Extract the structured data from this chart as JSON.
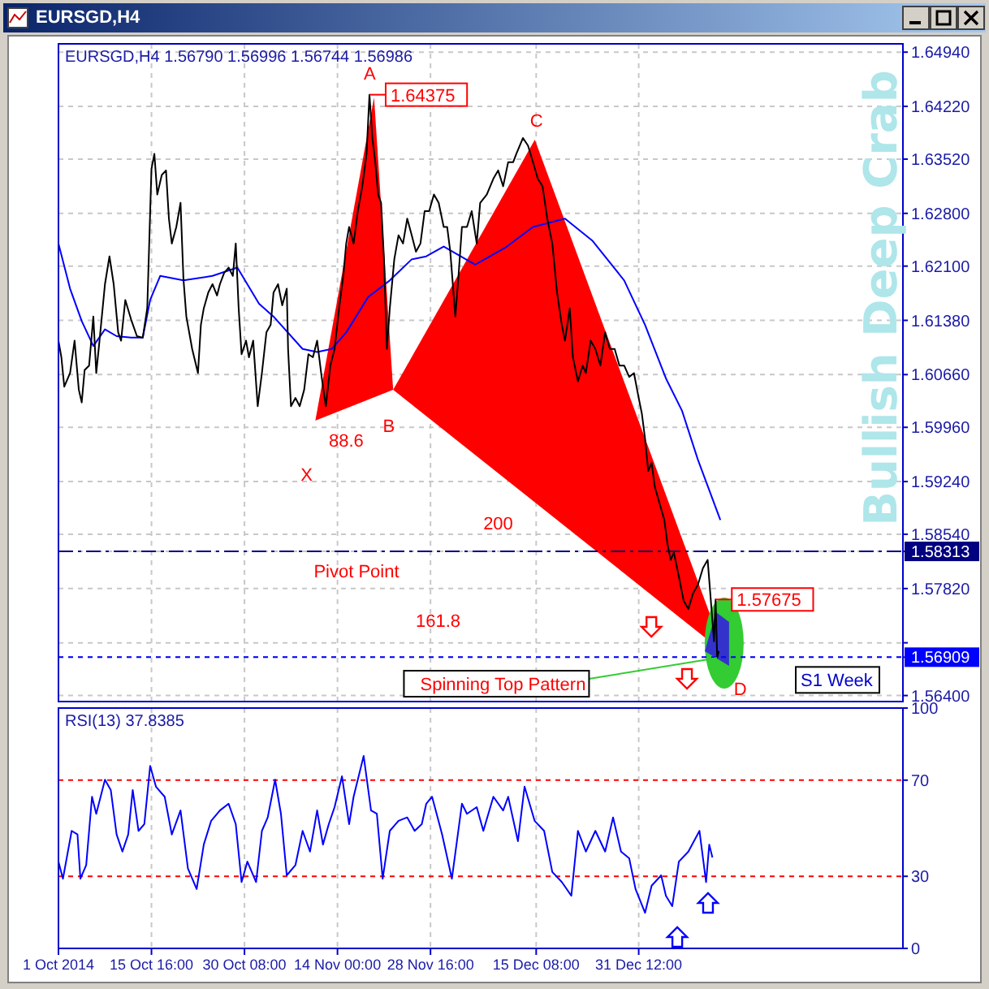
{
  "chart_data": [
    {
      "type": "line",
      "subtitle": "EURSGD,H4",
      "title": "EURSGD,H4  1.56790 1.56996 1.56744 1.56986",
      "xlim": [
        "2014-10-01T00:00",
        "2015-02-11T04:00"
      ],
      "ylim": [
        1.5632,
        1.6505
      ],
      "xticks": [
        {
          "value": "2014-10-01T00:00",
          "label": null
        },
        {
          "value": "2014-10-15T16:00",
          "label": null
        },
        {
          "value": "2014-10-30T08:00",
          "label": null
        },
        {
          "value": "2014-11-14T00:00",
          "label": null
        },
        {
          "value": "2014-11-28T16:00",
          "label": null
        },
        {
          "value": "2014-12-15T08:00",
          "label": null
        },
        {
          "value": "2014-12-31T12:00",
          "label": null
        }
      ],
      "yticks": [
        {
          "value": 1.6494,
          "label": "1.64940"
        },
        {
          "value": 1.6422,
          "label": "1.64220"
        },
        {
          "value": 1.6352,
          "label": "1.63520"
        },
        {
          "value": 1.628,
          "label": "1.62800"
        },
        {
          "value": 1.621,
          "label": "1.62100"
        },
        {
          "value": 1.6138,
          "label": "1.61380"
        },
        {
          "value": 1.6066,
          "label": "1.60660"
        },
        {
          "value": 1.5996,
          "label": "1.59960"
        },
        {
          "value": 1.5924,
          "label": "1.59240"
        },
        {
          "value": 1.5854,
          "label": "1.58540"
        },
        {
          "value": 1.58313,
          "label": "1.58313"
        },
        {
          "value": 1.5782,
          "label": "1.57820"
        },
        {
          "value": 1.571,
          "label": null
        },
        {
          "value": 1.56909,
          "label": "1.56909"
        },
        {
          "value": 1.564,
          "label": "1.56400"
        }
      ],
      "tick_labels": "y",
      "grid": true,
      "marker": "none",
      "series": [
        {
          "color": "#0000ff",
          "x": [
            "2014-10-01T00:00",
            "2014-10-02T20:00",
            "2014-10-04T16:00",
            "2014-10-06T12:00",
            "2014-10-08T08:00",
            "2014-10-10T04:00",
            "2014-10-12T11:00",
            "2014-10-14T07:00",
            "2014-10-15T11:00",
            "2014-10-17T01:00",
            "2014-10-20T17:00",
            "2014-10-25T07:00",
            "2014-10-29T05:00",
            "2014-11-01T15:00",
            "2014-11-03T22:00",
            "2014-11-08T12:00",
            "2014-11-10T19:00",
            "2014-11-13T02:00",
            "2014-11-15T09:00",
            "2014-11-18T20:00",
            "2014-11-22T06:00",
            "2014-11-25T17:00",
            "2014-11-28T00:00",
            "2014-11-30T18:00",
            "2014-12-05T17:00",
            "2014-12-10T09:00",
            "2014-12-14T20:00",
            "2014-12-19T21:00",
            "2014-12-24T04:00",
            "2014-12-29T05:00",
            "2015-01-01T12:00",
            "2015-01-04T19:00",
            "2015-01-07T08:00",
            "2015-01-09T20:00",
            "2015-01-13T09:00"
          ],
          "values": [
            1.624,
            1.618,
            1.6137,
            1.6104,
            1.6126,
            1.6117,
            1.6115,
            1.6115,
            1.6165,
            1.6197,
            1.6191,
            1.6197,
            1.6208,
            1.616,
            1.6143,
            1.61,
            1.6096,
            1.61,
            1.6122,
            1.6169,
            1.6191,
            1.6219,
            1.6223,
            1.6236,
            1.6212,
            1.6234,
            1.6262,
            1.6273,
            1.6244,
            1.6191,
            1.6132,
            1.6061,
            1.6018,
            1.5953,
            1.5873
          ]
        },
        {
          "color": "#000000",
          "x": [
            "2014-10-01T00:00",
            "2014-10-01T11:00",
            "2014-10-01T22:00",
            "2014-10-02T20:00",
            "2014-10-03T13:00",
            "2014-10-04T05:00",
            "2014-10-04T16:00",
            "2014-10-05T03:00",
            "2014-10-05T20:00",
            "2014-10-06T12:00",
            "2014-10-06T23:00",
            "2014-10-07T10:00",
            "2014-10-08T08:00",
            "2014-10-09T01:00",
            "2014-10-09T17:00",
            "2014-10-10T10:00",
            "2014-10-10T21:00",
            "2014-10-11T13:00",
            "2014-10-12T11:00",
            "2014-10-13T09:00",
            "2014-10-14T07:00",
            "2014-10-15T00:00",
            "2014-10-15T16:00",
            "2014-10-16T03:00",
            "2014-10-16T14:00",
            "2014-10-17T07:00",
            "2014-10-17T23:00",
            "2014-10-18T10:00",
            "2014-10-18T21:00",
            "2014-10-19T14:00",
            "2014-10-20T06:00",
            "2014-10-20T17:00",
            "2014-10-21T04:00",
            "2014-10-22T02:00",
            "2014-10-23T00:00",
            "2014-10-23T11:00",
            "2014-10-23T22:00",
            "2014-10-24T15:00",
            "2014-10-25T07:00",
            "2014-10-26T00:00",
            "2014-10-26T11:00",
            "2014-10-27T03:00",
            "2014-10-27T20:00",
            "2014-10-28T12:00",
            "2014-10-28T23:00",
            "2014-10-29T10:00",
            "2014-10-29T21:00",
            "2014-10-30T14:00",
            "2014-10-31T01:00",
            "2014-10-31T17:00",
            "2014-11-01T10:00",
            "2014-11-02T02:00",
            "2014-11-02T19:00",
            "2014-11-03T11:00",
            "2014-11-03T22:00",
            "2014-11-04T15:00",
            "2014-11-05T07:00",
            "2014-11-06T00:00",
            "2014-11-06T05:00",
            "2014-11-06T16:00",
            "2014-11-07T09:00",
            "2014-11-08T01:00",
            "2014-11-08T18:00",
            "2014-11-09T10:00",
            "2014-11-10T03:00",
            "2014-11-10T19:00",
            "2014-11-11T12:00",
            "2014-11-12T04:00",
            "2014-11-12T21:00",
            "2014-11-13T13:00",
            "2014-11-14T06:00",
            "2014-11-14T22:00",
            "2014-11-15T09:00",
            "2014-11-15T20:00",
            "2014-11-16T13:00",
            "2014-11-17T05:00",
            "2014-11-17T22:00",
            "2014-11-18T14:00",
            "2014-11-19T01:00",
            "2014-11-19T12:00",
            "2014-11-19T23:00",
            "2014-11-20T10:00",
            "2014-11-20T21:00",
            "2014-11-21T08:00",
            "2014-11-21T19:00",
            "2014-11-22T06:00",
            "2014-11-22T23:00",
            "2014-11-23T15:00",
            "2014-11-24T08:00",
            "2014-11-25T00:00",
            "2014-11-25T17:00",
            "2014-11-26T09:00",
            "2014-11-27T02:00",
            "2014-11-27T18:00",
            "2014-11-28T11:00",
            "2014-11-29T05:00",
            "2014-11-29T23:00",
            "2014-11-30T18:00",
            "2014-12-01T07:00",
            "2014-12-01T19:00",
            "2014-12-02T14:00",
            "2014-12-03T02:00",
            "2014-12-03T15:00",
            "2014-12-04T10:00",
            "2014-12-05T04:00",
            "2014-12-05T23:00",
            "2014-12-06T12:00",
            "2014-12-07T13:00",
            "2014-12-08T14:00",
            "2014-12-09T08:00",
            "2014-12-10T03:00",
            "2014-12-10T22:00",
            "2014-12-11T17:00",
            "2014-12-12T05:00",
            "2014-12-13T06:00",
            "2014-12-14T01:00",
            "2014-12-14T20:00",
            "2014-12-15T14:00",
            "2014-12-16T08:00",
            "2014-12-17T02:00",
            "2014-12-17T21:00",
            "2014-12-18T15:00",
            "2014-12-19T09:00",
            "2014-12-19T21:00",
            "2014-12-20T15:00",
            "2014-12-21T03:00",
            "2014-12-21T22:00",
            "2014-12-22T16:00",
            "2014-12-23T04:00",
            "2014-12-23T22:00",
            "2014-12-24T16:00",
            "2014-12-25T11:00",
            "2014-12-26T05:00",
            "2014-12-26T23:00",
            "2014-12-27T17:00",
            "2014-12-28T11:00",
            "2014-12-29T05:00",
            "2014-12-30T00:00",
            "2014-12-30T18:00",
            "2014-12-31T12:00",
            "2015-01-01T00:00",
            "2015-01-01T12:00",
            "2015-01-02T00:00",
            "2015-01-02T13:00",
            "2015-01-03T01:00",
            "2015-01-03T19:00",
            "2015-01-04T13:00",
            "2015-01-05T01:00",
            "2015-01-05T13:00",
            "2015-01-06T01:00",
            "2015-01-06T20:00",
            "2015-01-07T14:00",
            "2015-01-08T08:00",
            "2015-01-09T02:00",
            "2015-01-09T20:00",
            "2015-01-10T15:00",
            "2015-01-11T09:00",
            "2015-01-11T21:00",
            "2015-01-12T09:00",
            "2015-01-12T15:00",
            "2015-01-12T21:00",
            "2015-01-13T03:00"
          ],
          "values": [
            1.6111,
            1.6089,
            1.605,
            1.6068,
            1.6111,
            1.6046,
            1.6029,
            1.6072,
            1.6078,
            1.6143,
            1.6068,
            1.6106,
            1.6186,
            1.6223,
            1.6186,
            1.6122,
            1.6111,
            1.6165,
            1.6139,
            1.6117,
            1.6115,
            1.6154,
            1.6339,
            1.6359,
            1.6305,
            1.6331,
            1.6337,
            1.6273,
            1.624,
            1.6262,
            1.6294,
            1.6193,
            1.6143,
            1.61,
            1.6068,
            1.6132,
            1.6154,
            1.6175,
            1.6186,
            1.6171,
            1.6186,
            1.6201,
            1.6208,
            1.6197,
            1.624,
            1.6154,
            1.6093,
            1.6111,
            1.6089,
            1.6111,
            1.6024,
            1.6068,
            1.6122,
            1.6132,
            1.6175,
            1.6186,
            1.6158,
            1.618,
            1.61,
            1.6024,
            1.6035,
            1.6024,
            1.6046,
            1.6093,
            1.6089,
            1.6111,
            1.6063,
            1.6024,
            1.6078,
            1.61,
            1.6154,
            1.6197,
            1.624,
            1.6262,
            1.624,
            1.6283,
            1.6316,
            1.6359,
            1.64375,
            1.638,
            1.6348,
            1.6305,
            1.6294,
            1.6219,
            1.61,
            1.6154,
            1.6219,
            1.6251,
            1.624,
            1.6273,
            1.6251,
            1.6229,
            1.624,
            1.6283,
            1.6283,
            1.6305,
            1.6294,
            1.6262,
            1.6262,
            1.6229,
            1.6143,
            1.6197,
            1.6262,
            1.6262,
            1.6283,
            1.624,
            1.6294,
            1.6305,
            1.6326,
            1.6337,
            1.6316,
            1.6348,
            1.6348,
            1.6359,
            1.638,
            1.637,
            1.6348,
            1.6326,
            1.6316,
            1.6273,
            1.624,
            1.6175,
            1.6132,
            1.6111,
            1.6154,
            1.6089,
            1.6057,
            1.6078,
            1.6068,
            1.6111,
            1.61,
            1.6078,
            1.6122,
            1.61,
            1.61,
            1.6078,
            1.6078,
            1.6063,
            1.6068,
            1.6035,
            1.6014,
            1.5981,
            1.5938,
            1.5949,
            1.5917,
            1.5895,
            1.5873,
            1.5841,
            1.582,
            1.583,
            1.5798,
            1.5766,
            1.5755,
            1.5776,
            1.5787,
            1.5809,
            1.582,
            1.5766,
            1.5712,
            1.57675,
            1.569,
            1.5699
          ],
          "value_labels": [
            null,
            null,
            null,
            null,
            null,
            null,
            null,
            null,
            null,
            null,
            null,
            null,
            null,
            null,
            null,
            null,
            null,
            null,
            null,
            null,
            null,
            null,
            null,
            null,
            null,
            null,
            null,
            null,
            null,
            null,
            null,
            null,
            null,
            null,
            null,
            null,
            null,
            null,
            null,
            null,
            null,
            null,
            null,
            null,
            null,
            null,
            null,
            null,
            null,
            null,
            null,
            null,
            null,
            null,
            null,
            null,
            null,
            null,
            null,
            null,
            null,
            null,
            null,
            null,
            null,
            null,
            null,
            null,
            null,
            null,
            null,
            null,
            null,
            null,
            null,
            null,
            null,
            null,
            "1.64375",
            null,
            null,
            null,
            null,
            null,
            null,
            null,
            null,
            null,
            null,
            null,
            null,
            null,
            null,
            null,
            null,
            null,
            null,
            null,
            null,
            null,
            null,
            null,
            null,
            null,
            null,
            null,
            null,
            null,
            null,
            null,
            null,
            null,
            null,
            null,
            null,
            null,
            null,
            null,
            null,
            null,
            null,
            null,
            null,
            null,
            null,
            null,
            null,
            null,
            null,
            null,
            null,
            null,
            null,
            null,
            null,
            null,
            null,
            null,
            null,
            null,
            null,
            null,
            null,
            null,
            null,
            null,
            null,
            null,
            null,
            null,
            null,
            null,
            null,
            null,
            null,
            null,
            null,
            null,
            null,
            "1.57675",
            null,
            null
          ]
        }
      ],
      "ref_lines": [
        {
          "axis": "y",
          "value": 1.58313,
          "label": "Pivot Point",
          "color": "#000080",
          "line_style": "dashed"
        },
        {
          "axis": "y",
          "value": 1.56909,
          "label": "S1 Week",
          "color": "#0000ff",
          "line_style": "dotted"
        }
      ],
      "annotations": [
        "Bullish Deep Crab",
        "88.6",
        "200",
        "161.8",
        "X",
        "A",
        "B",
        "C",
        "D",
        {
          "text": "Spinning Top Pattern",
          "x": "2015-01-12T21:00",
          "y": 1.569
        }
      ]
    },
    {
      "type": "line",
      "title": "RSI(13) 37.8385",
      "xlim": [
        "2014-10-01T00:00",
        "2015-02-11T04:00"
      ],
      "ylim": [
        0,
        100
      ],
      "xticks": [
        {
          "value": "2014-10-01T00:00",
          "label": "1 Oct 2014"
        },
        {
          "value": "2014-10-15T16:00",
          "label": "15 Oct 16:00"
        },
        {
          "value": "2014-10-30T08:00",
          "label": "30 Oct 08:00"
        },
        {
          "value": "2014-11-14T00:00",
          "label": "14 Nov 00:00"
        },
        {
          "value": "2014-11-28T16:00",
          "label": "28 Nov 16:00"
        },
        {
          "value": "2014-12-15T08:00",
          "label": "15 Dec 08:00"
        },
        {
          "value": "2014-12-31T12:00",
          "label": "31 Dec 12:00"
        }
      ],
      "yticks": [
        0,
        30,
        70,
        100
      ],
      "grid": "x",
      "marker": "none",
      "ref_lines": [
        {
          "axis": "y",
          "value": 70,
          "color": "#ff0000",
          "line_style": "dotted"
        },
        {
          "axis": "y",
          "value": 30,
          "color": "#ff0000",
          "line_style": "dotted"
        }
      ],
      "series": [
        {
          "color": "#0000ff",
          "x": [
            "2014-10-01T00:00",
            "2014-10-01T17:00",
            "2014-10-03T02:00",
            "2014-10-04T00:00",
            "2014-10-04T11:00",
            "2014-10-05T09:00",
            "2014-10-06T07:00",
            "2014-10-06T23:00",
            "2014-10-08T08:00",
            "2014-10-09T06:00",
            "2014-10-10T04:00",
            "2014-10-11T02:00",
            "2014-10-12T00:00",
            "2014-10-12T17:00",
            "2014-10-13T15:00",
            "2014-10-14T13:00",
            "2014-10-15T11:00",
            "2014-10-16T09:00",
            "2014-10-17T18:00",
            "2014-10-18T21:00",
            "2014-10-20T06:00",
            "2014-10-21T10:00",
            "2014-10-22T19:00",
            "2014-10-23T22:00",
            "2014-10-25T02:00",
            "2014-10-26T11:00",
            "2014-10-27T20:00",
            "2014-10-28T23:00",
            "2014-10-29T21:00",
            "2014-10-30T19:00",
            "2014-11-01T04:00",
            "2014-11-02T02:00",
            "2014-11-03T00:00",
            "2014-11-04T04:00",
            "2014-11-05T02:00",
            "2014-11-06T00:00",
            "2014-11-07T09:00",
            "2014-11-08T12:00",
            "2014-11-09T16:00",
            "2014-11-10T19:00",
            "2014-11-11T17:00",
            "2014-11-12T15:00",
            "2014-11-13T13:00",
            "2014-11-14T17:00",
            "2014-11-15T20:00",
            "2014-11-16T13:00",
            "2014-11-18T03:00",
            "2014-11-19T07:00",
            "2014-11-20T05:00",
            "2014-11-21T03:00",
            "2014-11-22T06:00",
            "2014-11-23T15:00",
            "2014-11-25T00:00",
            "2014-11-26T04:00",
            "2014-11-27T07:00",
            "2014-11-28T00:00",
            "2014-11-28T22:00",
            "2014-11-30T12:00",
            "2014-12-02T01:00",
            "2014-12-03T15:00",
            "2014-12-04T10:00",
            "2014-12-05T23:00",
            "2014-12-07T00:00",
            "2014-12-08T14:00",
            "2014-12-10T03:00",
            "2014-12-10T22:00",
            "2014-12-12T11:00",
            "2014-12-13T12:00",
            "2014-12-15T02:00",
            "2014-12-16T14:00",
            "2014-12-17T21:00",
            "2014-12-19T09:00",
            "2014-12-20T21:00",
            "2014-12-21T22:00",
            "2014-12-23T04:00",
            "2014-12-24T16:00",
            "2014-12-26T05:00",
            "2014-12-27T11:00",
            "2014-12-28T17:00",
            "2014-12-30T00:00",
            "2014-12-31T00:00",
            "2015-01-01T12:00",
            "2015-01-02T13:00",
            "2015-01-04T01:00",
            "2015-01-04T19:00",
            "2015-01-05T19:00",
            "2015-01-06T20:00",
            "2015-01-08T08:00",
            "2015-01-10T02:00",
            "2015-01-11T03:00",
            "2015-01-11T15:00",
            "2015-01-12T03:00"
          ],
          "values": [
            36.1,
            29,
            48.9,
            47.4,
            29,
            34.7,
            63.1,
            56,
            70.2,
            65.9,
            47.4,
            40.3,
            47.4,
            65.9,
            48.9,
            51.7,
            75.9,
            67.3,
            63.1,
            47.4,
            57.4,
            33.2,
            24.7,
            43.2,
            53.1,
            57.4,
            60.2,
            51.7,
            27.6,
            36.1,
            27.6,
            48.9,
            54.5,
            70.2,
            56,
            30.4,
            34.7,
            48.9,
            40.3,
            57.4,
            43.2,
            51.7,
            58.8,
            71.6,
            51.7,
            63.1,
            80.1,
            57.4,
            56,
            29,
            48.9,
            53.1,
            54.5,
            48.9,
            51.7,
            60.2,
            63.1,
            47.4,
            29,
            60.2,
            56,
            58.8,
            48.9,
            63.1,
            57.4,
            63.1,
            44.6,
            67.3,
            53.1,
            48.9,
            31.8,
            27.6,
            21.9,
            48.9,
            40.3,
            48.9,
            40.3,
            54.5,
            40.3,
            37.5,
            24.7,
            14.8,
            26.1,
            30.4,
            21.9,
            17.6,
            36.1,
            40.3,
            48.9,
            27.6,
            43.2,
            37.8
          ]
        }
      ]
    }
  ]
}
